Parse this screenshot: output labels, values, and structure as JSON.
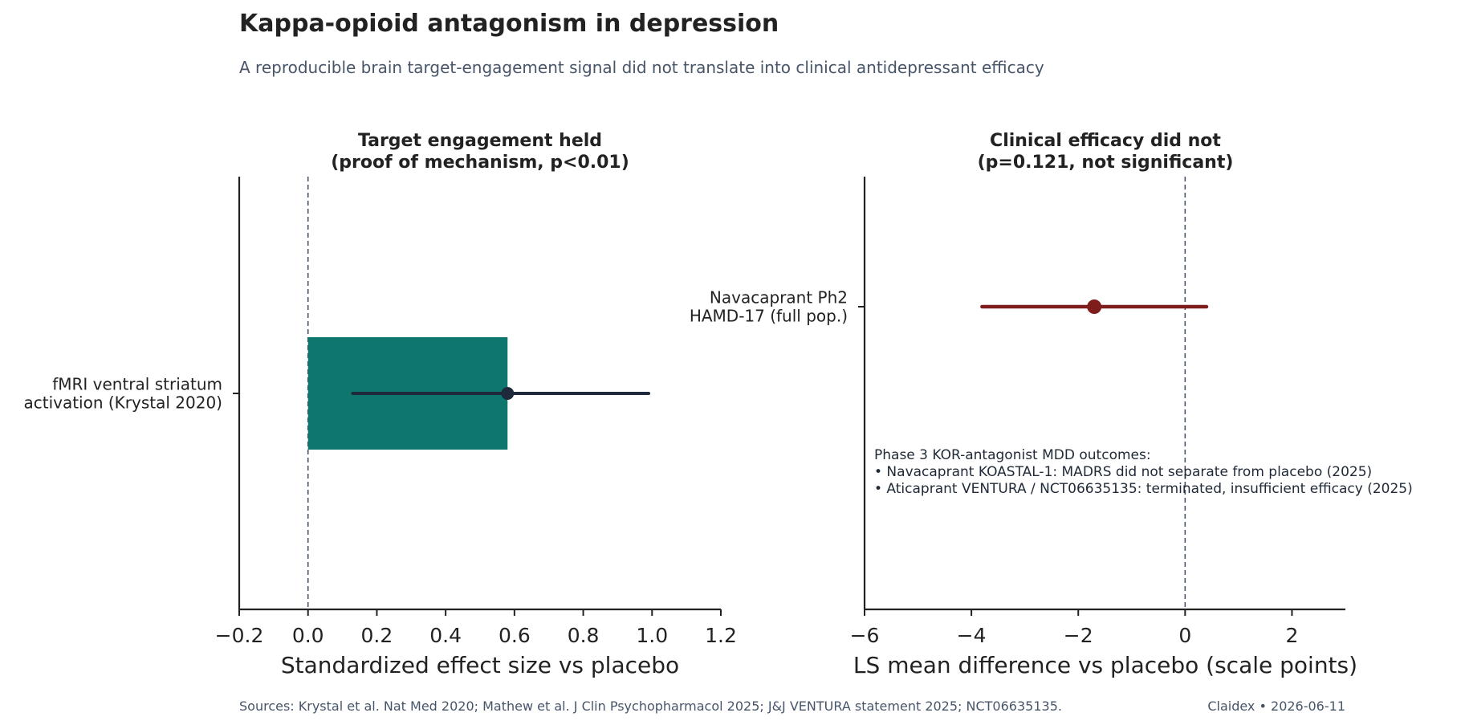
{
  "header": {
    "title": "Kappa-opioid antagonism in depression",
    "subtitle": "A reproducible brain target-engagement signal did not translate into clinical antidepressant efficacy"
  },
  "chart_data": [
    {
      "type": "bar",
      "title_lines": [
        "Target engagement held",
        "(proof of mechanism, p<0.01)"
      ],
      "xlabel": "Standardized effect size vs placebo",
      "ylabel": "",
      "xlim": [
        -0.2,
        1.2
      ],
      "xticks": [
        -0.2,
        0.0,
        0.2,
        0.4,
        0.6,
        0.8,
        1.0,
        1.2
      ],
      "xtick_labels": [
        "−0.2",
        "0.0",
        "0.2",
        "0.4",
        "0.6",
        "0.8",
        "1.0",
        "1.2"
      ],
      "reference_line": 0,
      "categories": [
        {
          "lines": [
            "fMRI ventral striatum",
            "activation (Krystal 2020)"
          ],
          "value": 0.58,
          "ci": [
            0.13,
            0.99
          ]
        }
      ],
      "colors": {
        "bar": "#0f766e",
        "ci": "#1e293b"
      },
      "grid": false
    },
    {
      "type": "scatter",
      "title_lines": [
        "Clinical efficacy did not",
        "(p=0.121, not significant)"
      ],
      "xlabel": "LS mean difference vs placebo (scale points)",
      "ylabel": "",
      "xlim": [
        -6,
        3
      ],
      "xticks": [
        -6,
        -4,
        -2,
        0,
        2
      ],
      "xtick_labels": [
        "−6",
        "−4",
        "−2",
        "0",
        "2"
      ],
      "reference_line": 0,
      "categories": [
        {
          "lines": [
            "Navacaprant Ph2",
            "HAMD-17 (full pop.)"
          ],
          "value": -1.7,
          "ci": [
            -3.8,
            0.4
          ]
        }
      ],
      "annotation": [
        "Phase 3 KOR-antagonist MDD outcomes:",
        "• Navacaprant KOASTAL-1: MADRS did not separate from placebo (2025)",
        "• Aticaprant VENTURA / NCT06635135: terminated, insufficient efficacy (2025)"
      ],
      "colors": {
        "point": "#7f1d1d",
        "ci": "#7f1d1d"
      },
      "grid": false
    }
  ],
  "footer": {
    "sources": "Sources: Krystal et al. Nat Med 2020; Mathew et al. J Clin Psychopharmacol 2025; J&J VENTURA statement 2025; NCT06635135.",
    "credit": "Claidex • 2026-06-11"
  }
}
